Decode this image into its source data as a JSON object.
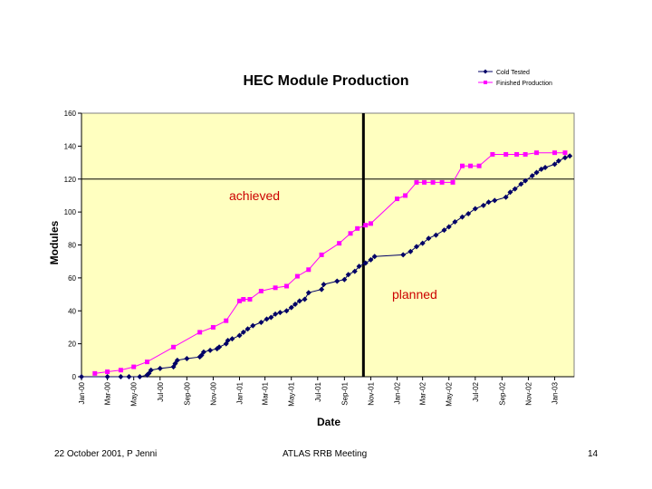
{
  "chart_data": {
    "type": "line",
    "title": "HEC Module Production",
    "xlabel": "Date",
    "ylabel": "Modules",
    "ylim": [
      0,
      160
    ],
    "yticks": [
      0,
      20,
      40,
      60,
      80,
      100,
      120,
      140,
      160
    ],
    "xlim": [
      "2000-01-01",
      "2003-02-15"
    ],
    "xticks": [
      {
        "date": "2000-01-01",
        "label": "Jan-00"
      },
      {
        "date": "2000-03-01",
        "label": "Mar-00"
      },
      {
        "date": "2000-05-01",
        "label": "May-00"
      },
      {
        "date": "2000-07-01",
        "label": "Jul-00"
      },
      {
        "date": "2000-09-01",
        "label": "Sep-00"
      },
      {
        "date": "2000-11-01",
        "label": "Nov-00"
      },
      {
        "date": "2001-01-01",
        "label": "Jan-01"
      },
      {
        "date": "2001-03-01",
        "label": "Mar-01"
      },
      {
        "date": "2001-05-01",
        "label": "May-01"
      },
      {
        "date": "2001-07-01",
        "label": "Jul-01"
      },
      {
        "date": "2001-09-01",
        "label": "Sep-01"
      },
      {
        "date": "2001-11-01",
        "label": "Nov-01"
      },
      {
        "date": "2002-01-01",
        "label": "Jan-02"
      },
      {
        "date": "2002-03-01",
        "label": "Mar-02"
      },
      {
        "date": "2002-05-01",
        "label": "May-02"
      },
      {
        "date": "2002-07-01",
        "label": "Jul-02"
      },
      {
        "date": "2002-09-01",
        "label": "Sep-02"
      },
      {
        "date": "2002-11-01",
        "label": "Nov-02"
      },
      {
        "date": "2003-01-01",
        "label": "Jan-03"
      }
    ],
    "grid": "horizontal",
    "legend_position": "top-right",
    "plot_background": "#ffffc0",
    "series": [
      {
        "name": "Cold Tested",
        "color": "#000066",
        "marker": "diamond",
        "points": [
          [
            "2000-01-01",
            0
          ],
          [
            "2000-03-01",
            0
          ],
          [
            "2000-04-01",
            0
          ],
          [
            "2000-04-20",
            0
          ],
          [
            "2000-05-15",
            0
          ],
          [
            "2000-06-01",
            1
          ],
          [
            "2000-06-05",
            2
          ],
          [
            "2000-06-10",
            4
          ],
          [
            "2000-07-01",
            5
          ],
          [
            "2000-08-01",
            6
          ],
          [
            "2000-08-05",
            8
          ],
          [
            "2000-08-10",
            10
          ],
          [
            "2000-09-01",
            11
          ],
          [
            "2000-10-01",
            12
          ],
          [
            "2000-10-05",
            13
          ],
          [
            "2000-10-10",
            15
          ],
          [
            "2000-10-25",
            16
          ],
          [
            "2000-11-10",
            17
          ],
          [
            "2000-11-15",
            18
          ],
          [
            "2000-12-01",
            20
          ],
          [
            "2000-12-05",
            22
          ],
          [
            "2000-12-15",
            23
          ],
          [
            "2001-01-01",
            25
          ],
          [
            "2001-01-10",
            27
          ],
          [
            "2001-01-20",
            29
          ],
          [
            "2001-02-01",
            31
          ],
          [
            "2001-02-20",
            33
          ],
          [
            "2001-03-05",
            35
          ],
          [
            "2001-03-15",
            36
          ],
          [
            "2001-03-25",
            38
          ],
          [
            "2001-04-05",
            39
          ],
          [
            "2001-04-20",
            40
          ],
          [
            "2001-05-01",
            42
          ],
          [
            "2001-05-10",
            44
          ],
          [
            "2001-05-20",
            46
          ],
          [
            "2001-06-01",
            47
          ],
          [
            "2001-06-10",
            51
          ],
          [
            "2001-07-10",
            53
          ],
          [
            "2001-07-15",
            56
          ],
          [
            "2001-08-15",
            58
          ],
          [
            "2001-09-01",
            59
          ],
          [
            "2001-09-10",
            62
          ],
          [
            "2001-09-25",
            64
          ],
          [
            "2001-10-05",
            67
          ],
          [
            "2001-10-20",
            69
          ],
          [
            "2001-11-01",
            71
          ],
          [
            "2001-11-10",
            73
          ],
          [
            "2002-01-15",
            74
          ],
          [
            "2002-02-01",
            76
          ],
          [
            "2002-02-15",
            79
          ],
          [
            "2002-03-01",
            81
          ],
          [
            "2002-03-15",
            84
          ],
          [
            "2002-04-01",
            86
          ],
          [
            "2002-04-20",
            89
          ],
          [
            "2002-05-01",
            91
          ],
          [
            "2002-05-15",
            94
          ],
          [
            "2002-06-01",
            97
          ],
          [
            "2002-06-15",
            99
          ],
          [
            "2002-07-01",
            102
          ],
          [
            "2002-07-20",
            104
          ],
          [
            "2002-08-01",
            106
          ],
          [
            "2002-08-15",
            107
          ],
          [
            "2002-09-10",
            109
          ],
          [
            "2002-09-20",
            112
          ],
          [
            "2002-10-01",
            114
          ],
          [
            "2002-10-15",
            117
          ],
          [
            "2002-10-25",
            119
          ],
          [
            "2002-11-10",
            122
          ],
          [
            "2002-11-20",
            124
          ],
          [
            "2002-12-01",
            126
          ],
          [
            "2002-12-10",
            127
          ],
          [
            "2003-01-01",
            129
          ],
          [
            "2003-01-10",
            131
          ],
          [
            "2003-01-25",
            133
          ],
          [
            "2003-02-05",
            134
          ]
        ]
      },
      {
        "name": "Finished Production",
        "color": "#ff00ff",
        "marker": "square",
        "points": [
          [
            "2000-02-01",
            2
          ],
          [
            "2000-03-01",
            3
          ],
          [
            "2000-04-01",
            4
          ],
          [
            "2000-05-01",
            6
          ],
          [
            "2000-06-01",
            9
          ],
          [
            "2000-08-01",
            18
          ],
          [
            "2000-10-01",
            27
          ],
          [
            "2000-11-01",
            30
          ],
          [
            "2000-12-01",
            34
          ],
          [
            "2001-01-01",
            46
          ],
          [
            "2001-01-10",
            47
          ],
          [
            "2001-01-25",
            47
          ],
          [
            "2001-02-20",
            52
          ],
          [
            "2001-03-25",
            54
          ],
          [
            "2001-04-20",
            55
          ],
          [
            "2001-05-15",
            61
          ],
          [
            "2001-06-10",
            65
          ],
          [
            "2001-07-10",
            74
          ],
          [
            "2001-08-20",
            81
          ],
          [
            "2001-09-15",
            87
          ],
          [
            "2001-10-01",
            90
          ],
          [
            "2001-10-20",
            92
          ],
          [
            "2001-11-01",
            93
          ],
          [
            "2002-01-01",
            108
          ],
          [
            "2002-01-20",
            110
          ],
          [
            "2002-02-15",
            118
          ],
          [
            "2002-03-05",
            118
          ],
          [
            "2002-03-25",
            118
          ],
          [
            "2002-04-15",
            118
          ],
          [
            "2002-05-10",
            118
          ],
          [
            "2002-06-01",
            128
          ],
          [
            "2002-06-20",
            128
          ],
          [
            "2002-07-10",
            128
          ],
          [
            "2002-08-10",
            135
          ],
          [
            "2002-09-10",
            135
          ],
          [
            "2002-10-05",
            135
          ],
          [
            "2002-10-25",
            135
          ],
          [
            "2002-11-20",
            136
          ],
          [
            "2003-01-01",
            136
          ],
          [
            "2003-01-25",
            136
          ]
        ]
      }
    ],
    "reference_lines": [
      {
        "orientation": "horizontal",
        "value": 120
      },
      {
        "orientation": "vertical",
        "value": "2001-10-15"
      }
    ],
    "annotations": [
      {
        "text": "achieved",
        "color": "#cc0000"
      },
      {
        "text": "planned",
        "color": "#cc0000"
      }
    ]
  },
  "footer": {
    "left": "22 October 2001, P Jenni",
    "center": "ATLAS RRB Meeting",
    "right": "14"
  }
}
